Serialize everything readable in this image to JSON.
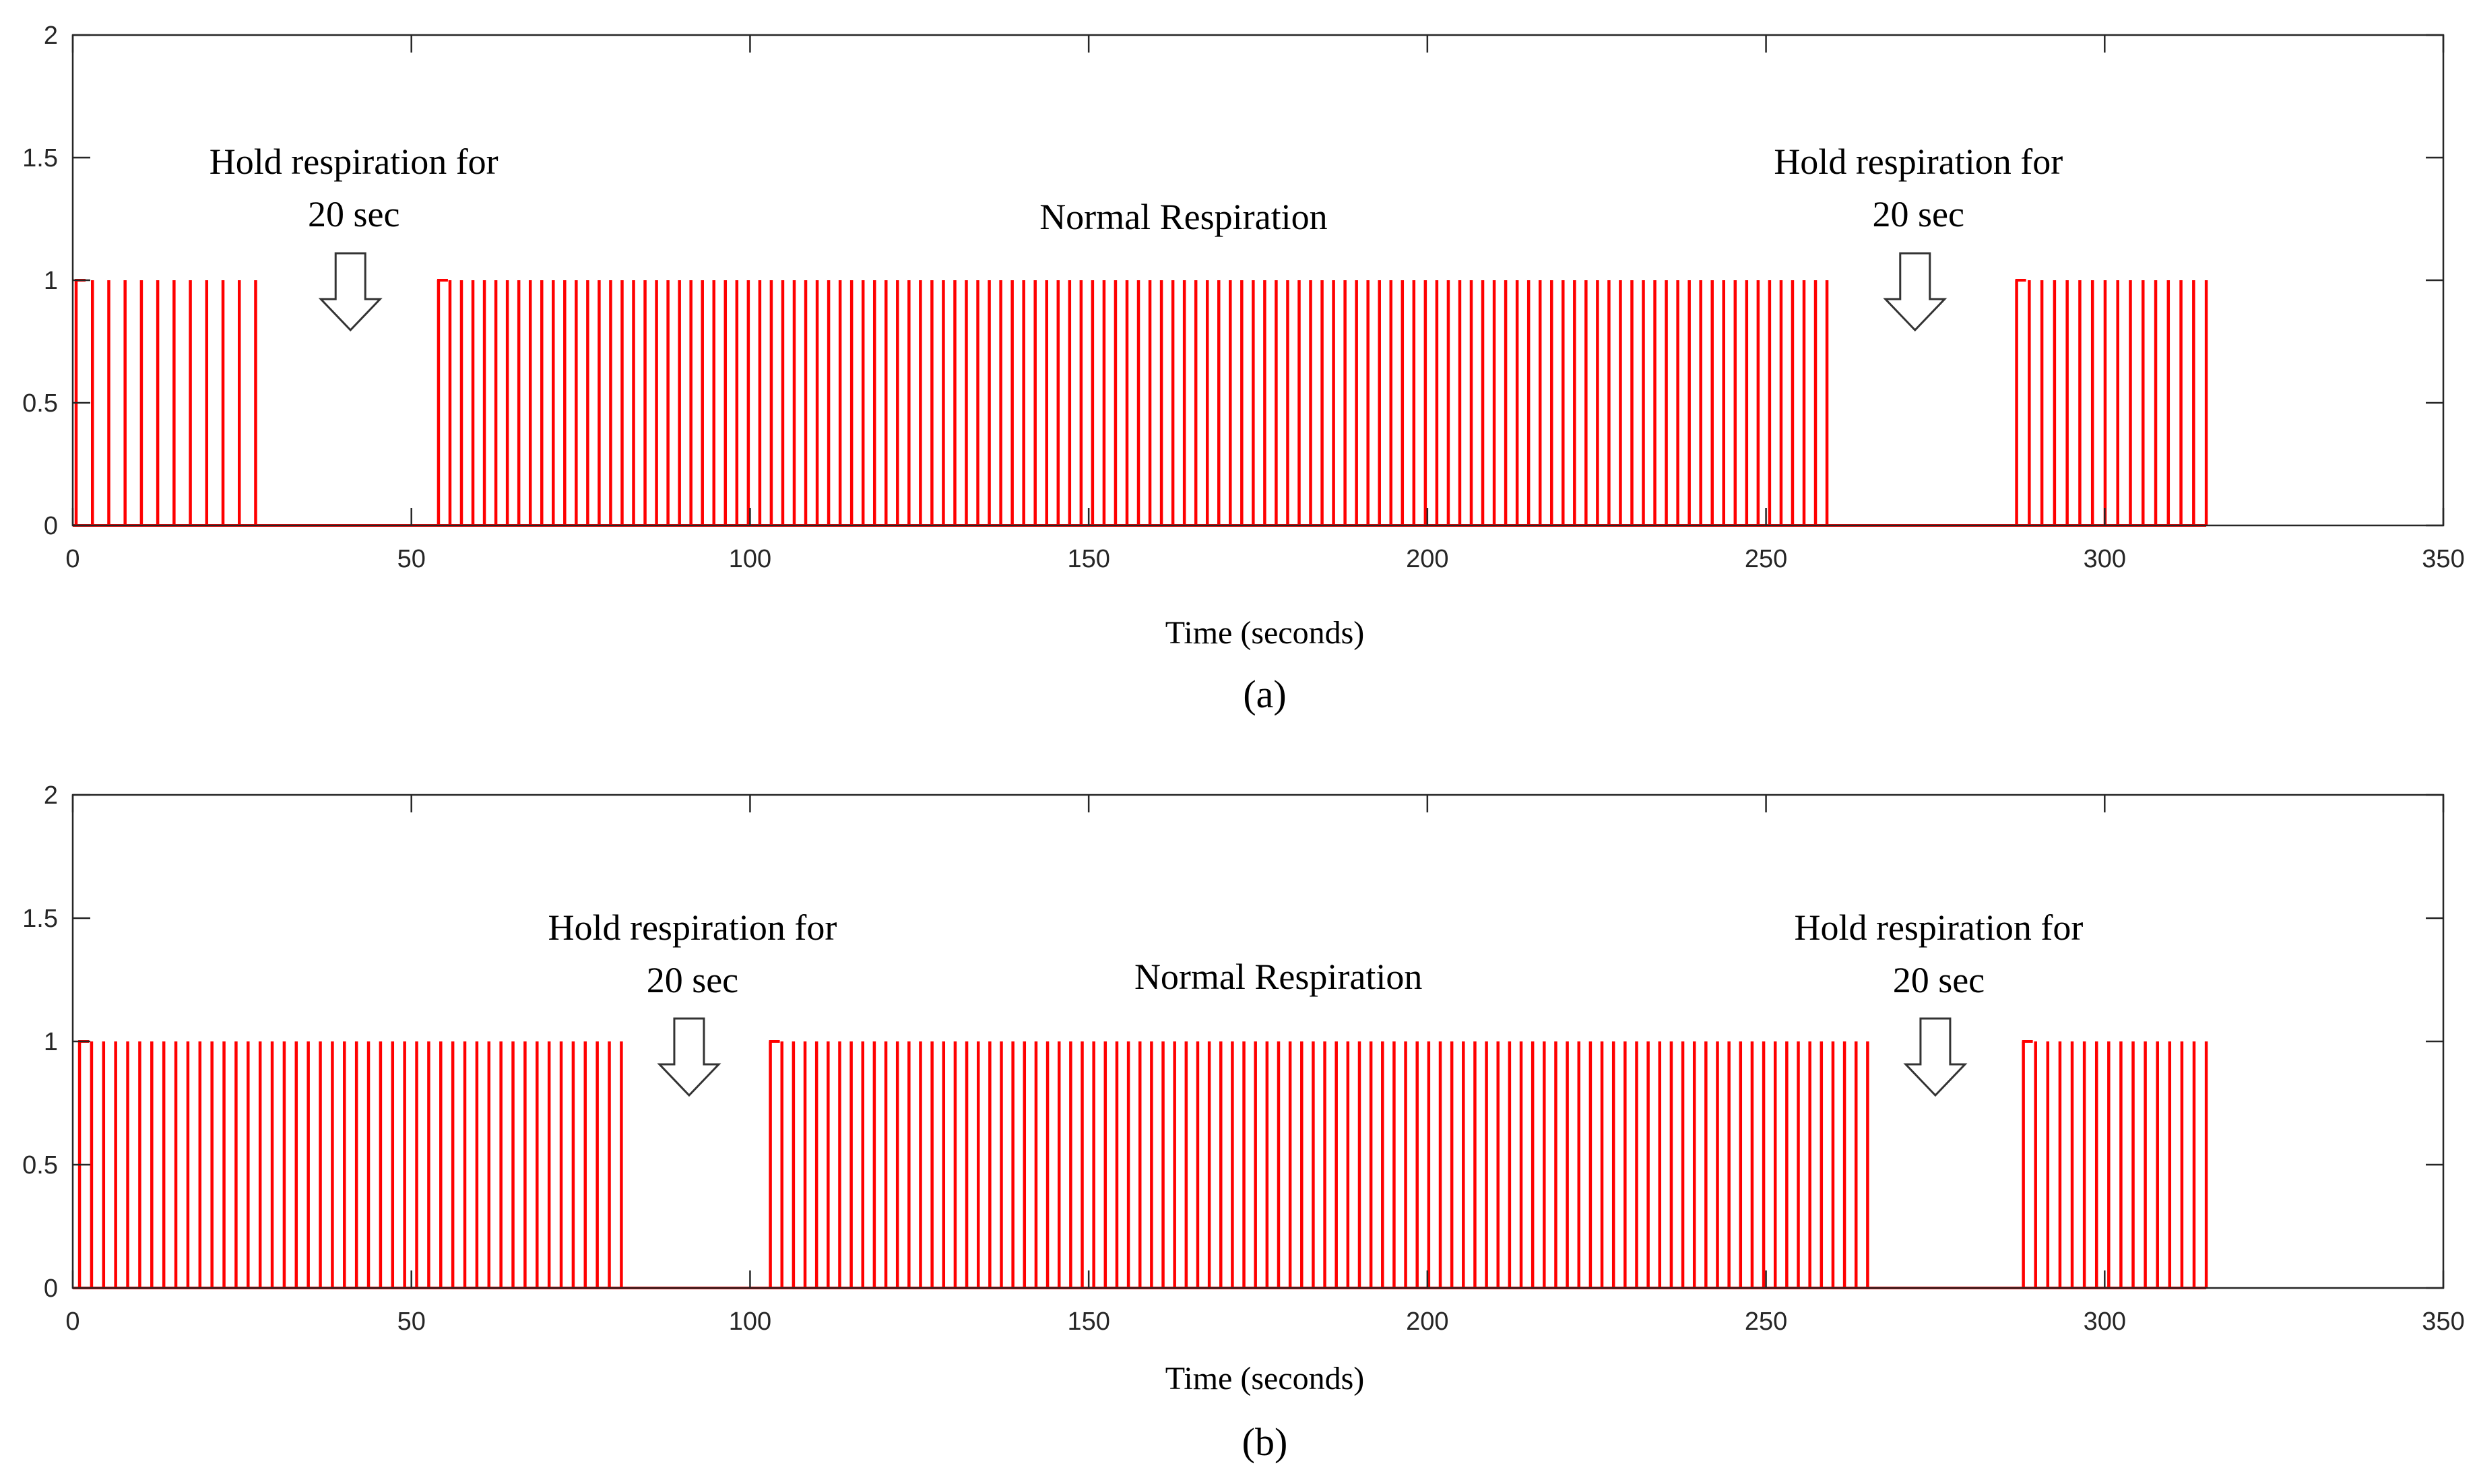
{
  "chart_data": [
    {
      "type": "line",
      "panel": "(a)",
      "caption": "(a)",
      "xlabel": "Time (seconds)",
      "ylabel": "",
      "xlim": [
        0,
        350
      ],
      "ylim": [
        0,
        2
      ],
      "xticks": [
        0,
        50,
        100,
        150,
        200,
        250,
        300,
        350
      ],
      "yticks": [
        0,
        0.5,
        1,
        1.5,
        2
      ],
      "ytick_labels": [
        "0",
        "0.5",
        "1",
        "1.5",
        "2"
      ],
      "series_color": "#ff0000",
      "pulse_height": 1,
      "pulse_segments": [
        {
          "start": 0.5,
          "end": 27,
          "count": 12
        },
        {
          "start": 54,
          "end": 259,
          "count": 122
        },
        {
          "start": 287,
          "end": 315,
          "count": 16
        }
      ],
      "annotations": [
        {
          "line1": "Hold respiration for",
          "line2": "20 sec",
          "x": 41,
          "arrow": true
        },
        {
          "line1": "Normal Respiration",
          "line2": "",
          "x": 164,
          "arrow": false
        },
        {
          "line1": "Hold respiration for",
          "line2": "20 sec",
          "x": 272,
          "arrow": true
        }
      ]
    },
    {
      "type": "line",
      "panel": "(b)",
      "caption": "(b)",
      "xlabel": "Time (seconds)",
      "ylabel": "",
      "xlim": [
        0,
        350
      ],
      "ylim": [
        0,
        2
      ],
      "xticks": [
        0,
        50,
        100,
        150,
        200,
        250,
        300,
        350
      ],
      "yticks": [
        0,
        0.5,
        1,
        1.5,
        2
      ],
      "ytick_labels": [
        "0",
        "0.5",
        "1",
        "1.5",
        "2"
      ],
      "series_color": "#ff0000",
      "pulse_segments": [
        {
          "start": 1,
          "end": 81,
          "count": 46
        },
        {
          "start": 103,
          "end": 265,
          "count": 96
        },
        {
          "start": 288,
          "end": 315,
          "count": 16
        }
      ],
      "pulse_height": 1,
      "annotations": [
        {
          "line1": "Hold respiration for",
          "line2": "20 sec",
          "x": 91,
          "arrow": true
        },
        {
          "line1": "Normal Respiration",
          "line2": "",
          "x": 178,
          "arrow": false
        },
        {
          "line1": "Hold respiration for",
          "line2": "20 sec",
          "x": 275,
          "arrow": true
        }
      ]
    }
  ]
}
